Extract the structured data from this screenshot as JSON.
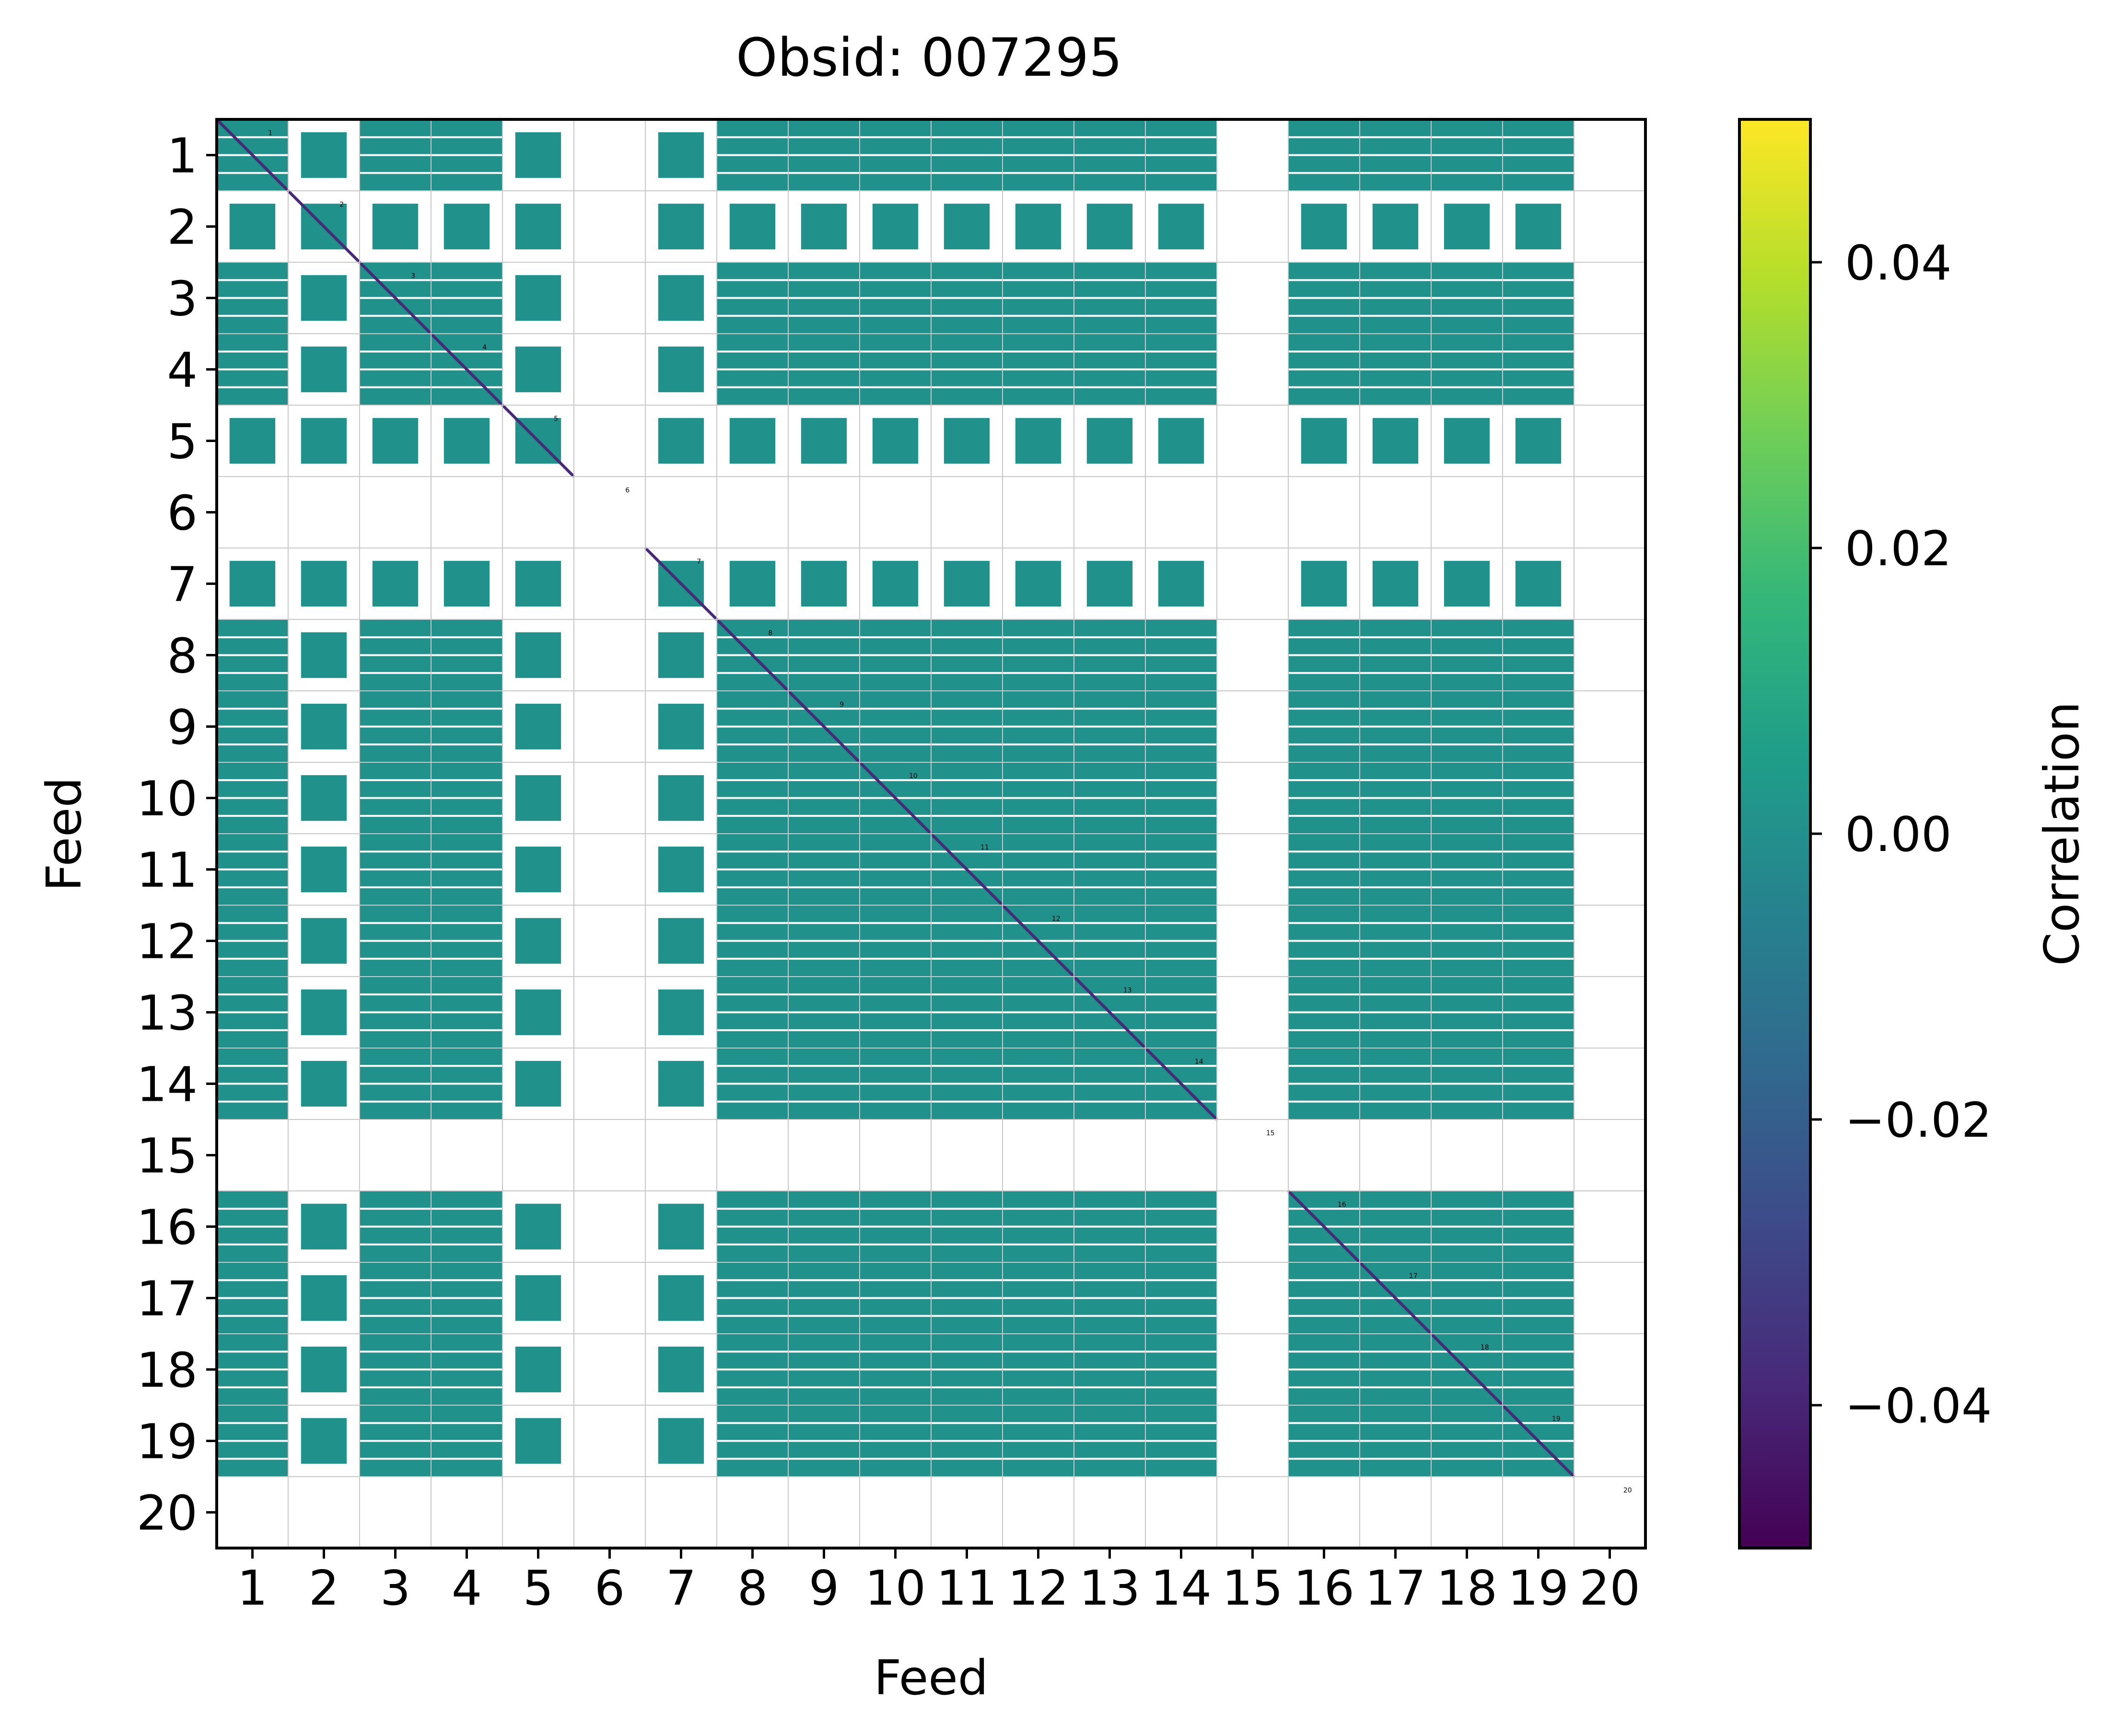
{
  "chart_data": {
    "type": "heatmap",
    "title": "Obsid: 007295",
    "xlabel": "Feed",
    "ylabel": "Feed",
    "feeds": [
      "1",
      "2",
      "3",
      "4",
      "5",
      "6",
      "7",
      "8",
      "9",
      "10",
      "11",
      "12",
      "13",
      "14",
      "15",
      "16",
      "17",
      "18",
      "19",
      "20"
    ],
    "empty_feeds": [
      "6",
      "15",
      "20"
    ],
    "sparse_feeds": [
      "2",
      "5",
      "7"
    ],
    "off_diagonal_value": 0.0,
    "diagonal_value": -0.05,
    "colorbar": {
      "label": "Correlation",
      "vmin": -0.05,
      "vmax": 0.05,
      "ticks": [
        -0.04,
        -0.02,
        0.0,
        0.02,
        0.04
      ],
      "tick_labels": [
        "−0.04",
        "−0.02",
        "0.00",
        "0.02",
        "0.04"
      ],
      "colormap": "viridis"
    },
    "grid": true
  },
  "colors": {
    "zero_value": "#21918c",
    "diagonal": "#482878",
    "masked": "#ffffff",
    "gridline": "#c8c8c8",
    "frame": "#000000",
    "viridis_stops": [
      "#440154",
      "#482878",
      "#3e4989",
      "#31688e",
      "#26828e",
      "#1f9e89",
      "#35b779",
      "#6ece58",
      "#b5de2b",
      "#fde725"
    ]
  }
}
